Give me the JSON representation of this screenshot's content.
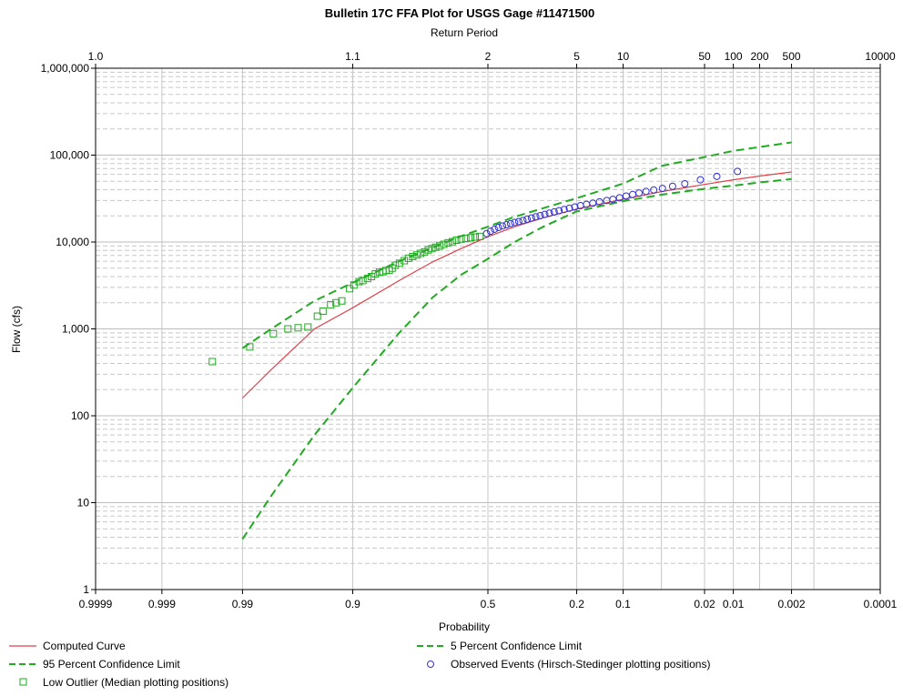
{
  "chart_data": {
    "type": "scatter",
    "title": "Bulletin 17C FFA Plot for USGS Gage #11471500",
    "top_axis_label": "Return Period",
    "xlabel": "Probability",
    "ylabel": "Flow (cfs)",
    "x_scale": "normal-probability (exceedance), decreasing left to right",
    "y_scale": "log",
    "ylim": [
      1,
      1000000
    ],
    "xlim": [
      0.9999,
      0.0001
    ],
    "grid": true,
    "legend_position": "bottom",
    "bottom_ticks": [
      {
        "p": 0.9999,
        "label": "0.9999"
      },
      {
        "p": 0.999,
        "label": "0.999"
      },
      {
        "p": 0.99,
        "label": "0.99"
      },
      {
        "p": 0.9,
        "label": "0.9"
      },
      {
        "p": 0.5,
        "label": "0.5"
      },
      {
        "p": 0.2,
        "label": "0.2"
      },
      {
        "p": 0.1,
        "label": "0.1"
      },
      {
        "p": 0.02,
        "label": "0.02"
      },
      {
        "p": 0.01,
        "label": "0.01"
      },
      {
        "p": 0.002,
        "label": "0.002"
      },
      {
        "p": 0.0001,
        "label": "0.0001"
      }
    ],
    "extra_vgrid_p": [
      0.05,
      0.005,
      0.001
    ],
    "top_ticks": [
      {
        "p": 0.9999,
        "label": "1.0"
      },
      {
        "p": 0.9,
        "label": "1.1"
      },
      {
        "p": 0.5,
        "label": "2"
      },
      {
        "p": 0.2,
        "label": "5"
      },
      {
        "p": 0.1,
        "label": "10"
      },
      {
        "p": 0.02,
        "label": "50"
      },
      {
        "p": 0.01,
        "label": "100"
      },
      {
        "p": 0.005,
        "label": "200"
      },
      {
        "p": 0.002,
        "label": "500"
      },
      {
        "p": 0.0001,
        "label": "10000"
      }
    ],
    "y_ticks": [
      {
        "v": 1,
        "label": "1"
      },
      {
        "v": 10,
        "label": "10"
      },
      {
        "v": 100,
        "label": "100"
      },
      {
        "v": 1000,
        "label": "1,000"
      },
      {
        "v": 10000,
        "label": "10,000"
      },
      {
        "v": 100000,
        "label": "100,000"
      },
      {
        "v": 1000000,
        "label": "1,000,000"
      }
    ],
    "series": [
      {
        "name": "Computed Curve",
        "kind": "line",
        "color": "#e0404a",
        "dash": "solid",
        "points": [
          [
            0.99,
            160
          ],
          [
            0.98,
            340
          ],
          [
            0.95,
            1000
          ],
          [
            0.9,
            1750
          ],
          [
            0.8,
            3600
          ],
          [
            0.7,
            5900
          ],
          [
            0.6,
            8400
          ],
          [
            0.5,
            11500
          ],
          [
            0.4,
            15000
          ],
          [
            0.3,
            19000
          ],
          [
            0.2,
            24000
          ],
          [
            0.1,
            31000
          ],
          [
            0.05,
            38000
          ],
          [
            0.02,
            46000
          ],
          [
            0.01,
            52000
          ],
          [
            0.005,
            57500
          ],
          [
            0.002,
            64000
          ]
        ]
      },
      {
        "name": "95 Percent Confidence Limit",
        "kind": "line",
        "color": "#22aa22",
        "dash": "dashed",
        "points": [
          [
            0.99,
            600
          ],
          [
            0.98,
            1000
          ],
          [
            0.95,
            2100
          ],
          [
            0.9,
            3400
          ],
          [
            0.8,
            6000
          ],
          [
            0.7,
            8600
          ],
          [
            0.6,
            11700
          ],
          [
            0.5,
            15000
          ],
          [
            0.4,
            19500
          ],
          [
            0.3,
            24500
          ],
          [
            0.2,
            32000
          ],
          [
            0.1,
            47000
          ],
          [
            0.05,
            75000
          ],
          [
            0.02,
            95000
          ],
          [
            0.01,
            112000
          ],
          [
            0.005,
            124000
          ],
          [
            0.002,
            140000
          ]
        ]
      },
      {
        "name": "5 Percent Confidence Limit",
        "kind": "line",
        "color": "#22aa22",
        "dash": "dashed",
        "points": [
          [
            0.99,
            3.8
          ],
          [
            0.98,
            12
          ],
          [
            0.95,
            60
          ],
          [
            0.9,
            210
          ],
          [
            0.8,
            900
          ],
          [
            0.7,
            2300
          ],
          [
            0.6,
            4200
          ],
          [
            0.5,
            6400
          ],
          [
            0.4,
            10000
          ],
          [
            0.3,
            15000
          ],
          [
            0.2,
            22500
          ],
          [
            0.1,
            29500
          ],
          [
            0.05,
            35000
          ],
          [
            0.02,
            41000
          ],
          [
            0.01,
            44500
          ],
          [
            0.005,
            48500
          ],
          [
            0.002,
            53000
          ]
        ]
      },
      {
        "name": "Low Outlier (Median plotting positions)",
        "kind": "marker",
        "marker": "square",
        "color": "#22aa22",
        "points": [
          [
            0.9955,
            420
          ],
          [
            0.988,
            620
          ],
          [
            0.979,
            880
          ],
          [
            0.971,
            1000
          ],
          [
            0.964,
            1030
          ],
          [
            0.956,
            1050
          ],
          [
            0.947,
            1400
          ],
          [
            0.941,
            1600
          ],
          [
            0.932,
            1900
          ],
          [
            0.925,
            2000
          ],
          [
            0.917,
            2100
          ],
          [
            0.905,
            2900
          ],
          [
            0.898,
            3200
          ],
          [
            0.889,
            3500
          ],
          [
            0.882,
            3600
          ],
          [
            0.873,
            3800
          ],
          [
            0.865,
            4000
          ],
          [
            0.857,
            4300
          ],
          [
            0.848,
            4500
          ],
          [
            0.84,
            4550
          ],
          [
            0.833,
            4700
          ],
          [
            0.825,
            4750
          ],
          [
            0.818,
            5000
          ],
          [
            0.81,
            5400
          ],
          [
            0.799,
            5700
          ],
          [
            0.786,
            6100
          ],
          [
            0.774,
            6500
          ],
          [
            0.762,
            6800
          ],
          [
            0.75,
            7100
          ],
          [
            0.738,
            7400
          ],
          [
            0.726,
            7700
          ],
          [
            0.714,
            8100
          ],
          [
            0.702,
            8400
          ],
          [
            0.69,
            8700
          ],
          [
            0.676,
            9000
          ],
          [
            0.662,
            9400
          ],
          [
            0.647,
            9800
          ],
          [
            0.632,
            10100
          ],
          [
            0.617,
            10500
          ],
          [
            0.6,
            10800
          ],
          [
            0.583,
            11000
          ],
          [
            0.565,
            11200
          ],
          [
            0.548,
            11400
          ],
          [
            0.53,
            11600
          ]
        ]
      },
      {
        "name": "Observed Events (Hirsch-Stedinger plotting positions)",
        "kind": "marker",
        "marker": "circle",
        "color": "#3333cc",
        "points": [
          [
            0.505,
            12500
          ],
          [
            0.49,
            13300
          ],
          [
            0.475,
            14000
          ],
          [
            0.46,
            14700
          ],
          [
            0.445,
            15300
          ],
          [
            0.43,
            15800
          ],
          [
            0.415,
            16300
          ],
          [
            0.4,
            16800
          ],
          [
            0.385,
            17200
          ],
          [
            0.37,
            17700
          ],
          [
            0.355,
            18300
          ],
          [
            0.34,
            18900
          ],
          [
            0.325,
            19500
          ],
          [
            0.31,
            20100
          ],
          [
            0.295,
            20800
          ],
          [
            0.28,
            21500
          ],
          [
            0.265,
            22200
          ],
          [
            0.25,
            22900
          ],
          [
            0.235,
            23700
          ],
          [
            0.22,
            24500
          ],
          [
            0.205,
            25300
          ],
          [
            0.19,
            26200
          ],
          [
            0.175,
            27100
          ],
          [
            0.16,
            28000
          ],
          [
            0.145,
            29000
          ],
          [
            0.13,
            30000
          ],
          [
            0.118,
            31000
          ],
          [
            0.106,
            32300
          ],
          [
            0.095,
            33800
          ],
          [
            0.085,
            35200
          ],
          [
            0.076,
            36700
          ],
          [
            0.067,
            38200
          ],
          [
            0.058,
            39700
          ],
          [
            0.049,
            41400
          ],
          [
            0.04,
            43800
          ],
          [
            0.031,
            46800
          ],
          [
            0.022,
            52000
          ],
          [
            0.015,
            57000
          ],
          [
            0.009,
            65000
          ]
        ]
      }
    ]
  }
}
